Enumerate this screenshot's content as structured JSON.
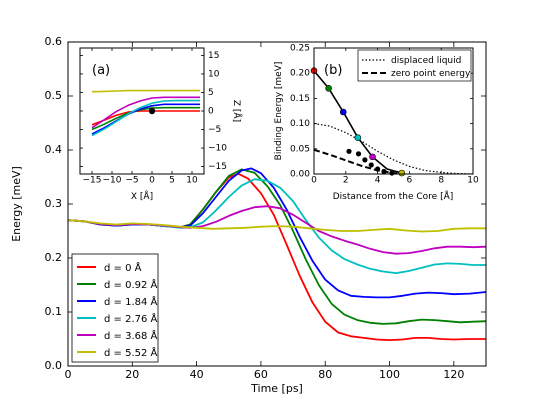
{
  "chart_data": [
    {
      "type": "line",
      "xlabel": "Time [ps]",
      "ylabel": "Energy [meV]",
      "xlim": [
        0,
        130
      ],
      "ylim": [
        0.0,
        0.6
      ],
      "xticks": [
        0,
        20,
        40,
        60,
        80,
        100,
        120
      ],
      "yticks": [
        0.0,
        0.1,
        0.2,
        0.3,
        0.4,
        0.5,
        0.6
      ],
      "xtick_labels": [
        "0",
        "20",
        "40",
        "60",
        "80",
        "100",
        "120"
      ],
      "ytick_labels": [
        "0.0",
        "0.1",
        "0.2",
        "0.3",
        "0.4",
        "0.5",
        "0.6"
      ],
      "legend_position": "lower-left",
      "series": [
        {
          "name": "d = 0 Å",
          "color": "#ff0000",
          "x": [
            0,
            5,
            10,
            15,
            20,
            25,
            30,
            35,
            38,
            42,
            46,
            50,
            53,
            56,
            60,
            64,
            68,
            72,
            76,
            80,
            84,
            88,
            92,
            96,
            100,
            104,
            108,
            112,
            116,
            120,
            125,
            130
          ],
          "y": [
            0.27,
            0.268,
            0.262,
            0.26,
            0.262,
            0.262,
            0.259,
            0.257,
            0.262,
            0.29,
            0.322,
            0.349,
            0.356,
            0.347,
            0.32,
            0.28,
            0.225,
            0.168,
            0.118,
            0.082,
            0.062,
            0.055,
            0.052,
            0.049,
            0.048,
            0.049,
            0.052,
            0.052,
            0.05,
            0.049,
            0.05,
            0.05
          ]
        },
        {
          "name": "d = 0.92 Å",
          "color": "#008000",
          "x": [
            0,
            5,
            10,
            15,
            20,
            25,
            30,
            35,
            38,
            42,
            46,
            50,
            54,
            58,
            62,
            66,
            70,
            74,
            78,
            82,
            86,
            90,
            94,
            98,
            102,
            106,
            110,
            114,
            118,
            122,
            126,
            130
          ],
          "y": [
            0.27,
            0.268,
            0.262,
            0.26,
            0.262,
            0.262,
            0.259,
            0.257,
            0.262,
            0.29,
            0.322,
            0.352,
            0.364,
            0.358,
            0.333,
            0.298,
            0.25,
            0.197,
            0.15,
            0.115,
            0.095,
            0.085,
            0.08,
            0.078,
            0.079,
            0.083,
            0.086,
            0.085,
            0.083,
            0.081,
            0.082,
            0.083
          ]
        },
        {
          "name": "d = 1.84 Å",
          "color": "#0000ff",
          "x": [
            0,
            5,
            10,
            15,
            20,
            25,
            30,
            35,
            38,
            42,
            46,
            50,
            54,
            57,
            60,
            64,
            68,
            72,
            76,
            80,
            84,
            88,
            92,
            96,
            100,
            104,
            108,
            112,
            116,
            120,
            125,
            130
          ],
          "y": [
            0.27,
            0.268,
            0.262,
            0.26,
            0.262,
            0.262,
            0.259,
            0.257,
            0.26,
            0.283,
            0.313,
            0.343,
            0.362,
            0.366,
            0.357,
            0.33,
            0.29,
            0.24,
            0.195,
            0.16,
            0.14,
            0.13,
            0.128,
            0.127,
            0.127,
            0.13,
            0.134,
            0.136,
            0.135,
            0.133,
            0.134,
            0.137
          ]
        },
        {
          "name": "d = 2.76 Å",
          "color": "#00bfbf",
          "x": [
            0,
            5,
            10,
            15,
            20,
            25,
            30,
            35,
            38,
            42,
            46,
            50,
            54,
            58,
            62,
            66,
            70,
            74,
            78,
            82,
            86,
            90,
            94,
            98,
            102,
            106,
            110,
            114,
            118,
            122,
            126,
            130
          ],
          "y": [
            0.27,
            0.268,
            0.263,
            0.261,
            0.263,
            0.262,
            0.259,
            0.256,
            0.257,
            0.266,
            0.288,
            0.313,
            0.334,
            0.346,
            0.343,
            0.33,
            0.305,
            0.27,
            0.238,
            0.214,
            0.198,
            0.188,
            0.18,
            0.175,
            0.172,
            0.176,
            0.182,
            0.188,
            0.19,
            0.189,
            0.187,
            0.187
          ]
        },
        {
          "name": "d = 3.68 Å",
          "color": "#bf00bf",
          "x": [
            0,
            5,
            10,
            15,
            20,
            25,
            30,
            35,
            38,
            42,
            46,
            50,
            54,
            58,
            62,
            66,
            70,
            74,
            78,
            82,
            86,
            90,
            94,
            98,
            102,
            106,
            110,
            114,
            118,
            122,
            126,
            130
          ],
          "y": [
            0.27,
            0.268,
            0.263,
            0.261,
            0.263,
            0.262,
            0.26,
            0.257,
            0.256,
            0.259,
            0.267,
            0.278,
            0.287,
            0.294,
            0.296,
            0.292,
            0.28,
            0.265,
            0.25,
            0.24,
            0.232,
            0.225,
            0.217,
            0.211,
            0.208,
            0.209,
            0.213,
            0.218,
            0.221,
            0.221,
            0.22,
            0.221
          ]
        },
        {
          "name": "d = 5.52 Å",
          "color": "#bfbf00",
          "x": [
            0,
            5,
            10,
            15,
            20,
            25,
            30,
            35,
            40,
            45,
            50,
            55,
            60,
            65,
            70,
            75,
            80,
            85,
            90,
            95,
            100,
            105,
            110,
            115,
            120,
            125,
            130
          ],
          "y": [
            0.27,
            0.268,
            0.264,
            0.262,
            0.264,
            0.263,
            0.261,
            0.258,
            0.256,
            0.254,
            0.255,
            0.256,
            0.258,
            0.259,
            0.258,
            0.255,
            0.252,
            0.25,
            0.25,
            0.252,
            0.254,
            0.251,
            0.249,
            0.25,
            0.254,
            0.255,
            0.255
          ]
        }
      ]
    },
    {
      "type": "line",
      "annotation": "(a)",
      "xlabel": "X [Å]",
      "ylabel": "Z [Å]",
      "xlim": [
        -18,
        13
      ],
      "ylim": [
        -17,
        17
      ],
      "xticks": [
        -15,
        -10,
        -5,
        0,
        5,
        10
      ],
      "yticks": [
        -15,
        -10,
        -5,
        0,
        5,
        10,
        15
      ],
      "xtick_labels": [
        "−15",
        "−10",
        "−5",
        "0",
        "5",
        "10"
      ],
      "ytick_labels": [
        "−15",
        "−10",
        "−5",
        "0",
        "5",
        "10",
        "15"
      ],
      "point": {
        "x": 0,
        "y": 0,
        "color": "#000000"
      },
      "series": [
        {
          "color": "#ff0000",
          "x": [
            -15,
            -12,
            -9,
            -6,
            -3,
            0,
            3,
            6,
            9,
            12
          ],
          "y": [
            -3.7,
            -2.5,
            -1.2,
            -0.3,
            0.0,
            0.0,
            0.0,
            0.0,
            0.0,
            0.0
          ]
        },
        {
          "color": "#008000",
          "x": [
            -15,
            -12,
            -9,
            -6,
            -3,
            0,
            3,
            6,
            9,
            12
          ],
          "y": [
            -5.0,
            -3.6,
            -2.0,
            -0.6,
            0.3,
            0.8,
            0.9,
            0.9,
            0.9,
            0.9
          ]
        },
        {
          "color": "#0000ff",
          "x": [
            -15,
            -12,
            -9,
            -6,
            -3,
            0,
            3,
            6,
            9,
            12
          ],
          "y": [
            -6.2,
            -4.6,
            -2.7,
            -0.9,
            0.5,
            1.4,
            1.8,
            1.8,
            1.8,
            1.8
          ]
        },
        {
          "color": "#00bfbf",
          "x": [
            -15,
            -12,
            -9,
            -6,
            -3,
            0,
            3,
            6,
            9,
            12
          ],
          "y": [
            -6.6,
            -4.9,
            -2.9,
            -0.8,
            0.9,
            2.1,
            2.7,
            2.8,
            2.8,
            2.8
          ]
        },
        {
          "color": "#bf00bf",
          "x": [
            -15,
            -12,
            -9,
            -6,
            -3,
            0,
            3,
            6,
            9,
            12
          ],
          "y": [
            -4.5,
            -2.4,
            -0.2,
            1.5,
            2.7,
            3.5,
            3.7,
            3.7,
            3.7,
            3.7
          ]
        },
        {
          "color": "#bfbf00",
          "x": [
            -15,
            -12,
            -9,
            -6,
            -3,
            0,
            3,
            6,
            9,
            12
          ],
          "y": [
            5.2,
            5.3,
            5.4,
            5.5,
            5.5,
            5.5,
            5.5,
            5.5,
            5.5,
            5.5
          ]
        }
      ]
    },
    {
      "type": "line",
      "annotation": "(b)",
      "xlabel": "Distance from the Core [Å]",
      "ylabel": "Binding Energy [meV]",
      "xlim": [
        0,
        10
      ],
      "ylim": [
        0.0,
        0.25
      ],
      "xticks": [
        0,
        2,
        4,
        6,
        8,
        10
      ],
      "yticks": [
        0.0,
        0.05,
        0.1,
        0.15,
        0.2,
        0.25
      ],
      "xtick_labels": [
        "0",
        "2",
        "4",
        "6",
        "8",
        "10"
      ],
      "ytick_labels": [
        "0.00",
        "0.05",
        "0.10",
        "0.15",
        "0.20",
        "0.25"
      ],
      "legend_position": "top-right",
      "series": [
        {
          "name": "displaced liquid",
          "style": "dotted",
          "color": "#000000",
          "x": [
            0,
            1,
            2,
            3,
            4,
            5,
            6,
            7,
            8,
            9,
            10
          ],
          "y": [
            0.1,
            0.095,
            0.082,
            0.065,
            0.045,
            0.028,
            0.015,
            0.007,
            0.003,
            0.001,
            0.0
          ]
        },
        {
          "name": "zero point energy",
          "style": "dashed",
          "color": "#000000",
          "x": [
            0,
            1,
            2,
            3,
            4,
            5,
            5.5
          ],
          "y": [
            0.048,
            0.038,
            0.027,
            0.016,
            0.007,
            0.002,
            0.0
          ]
        },
        {
          "style": "solid",
          "color": "#000000",
          "x": [
            0,
            0.92,
            1.84,
            2.76,
            3.68,
            4.6,
            5.52
          ],
          "y": [
            0.205,
            0.17,
            0.123,
            0.072,
            0.034,
            0.01,
            0.002
          ]
        }
      ],
      "colored_points": [
        {
          "x": 0,
          "y": 0.205,
          "color": "#ff0000"
        },
        {
          "x": 0.92,
          "y": 0.17,
          "color": "#008000"
        },
        {
          "x": 1.84,
          "y": 0.123,
          "color": "#0000ff"
        },
        {
          "x": 2.76,
          "y": 0.072,
          "color": "#00bfbf"
        },
        {
          "x": 3.68,
          "y": 0.034,
          "color": "#bf00bf"
        },
        {
          "x": 5.52,
          "y": 0.002,
          "color": "#bfbf00"
        }
      ],
      "black_points": [
        {
          "x": 2.2,
          "y": 0.045
        },
        {
          "x": 2.8,
          "y": 0.04
        },
        {
          "x": 3.2,
          "y": 0.028
        },
        {
          "x": 3.6,
          "y": 0.018
        },
        {
          "x": 4.0,
          "y": 0.01
        },
        {
          "x": 4.4,
          "y": 0.005
        },
        {
          "x": 4.9,
          "y": 0.002
        }
      ]
    }
  ]
}
